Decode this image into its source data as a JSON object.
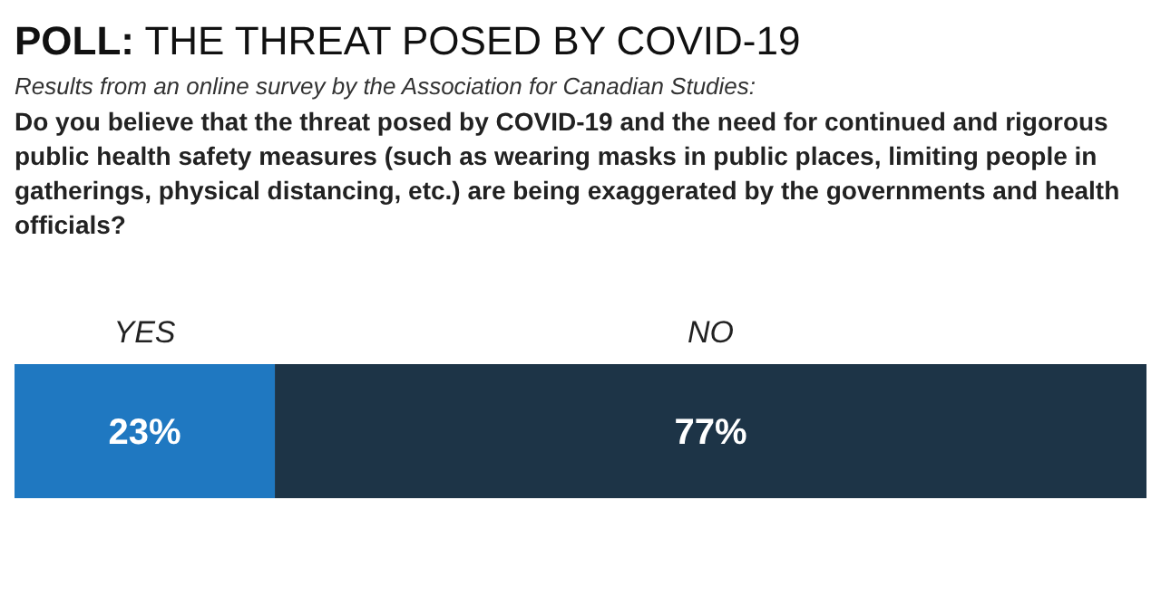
{
  "chart_data": {
    "type": "bar",
    "orientation": "horizontal",
    "stacked": true,
    "title": "POLL: THE THREAT POSED BY COVID-19",
    "subtitle": "Results from an online survey by the Association for Canadian Studies:",
    "annotations": [
      "Do you believe that the threat posed by COVID-19 and the need for continued and rigorous public health safety measures (such as wearing masks in public places, limiting people in gatherings, physical distancing, etc.) are being exaggerated by the governments and health officials?"
    ],
    "categories": [
      null
    ],
    "xlim": [
      0,
      100
    ],
    "legend": false,
    "series": [
      {
        "name": "YES",
        "color": "#1f78c1",
        "values": [
          23
        ],
        "value_labels": [
          "23%"
        ]
      },
      {
        "name": "NO",
        "color": "#1d3447",
        "values": [
          77
        ],
        "value_labels": [
          "77%"
        ]
      }
    ]
  }
}
